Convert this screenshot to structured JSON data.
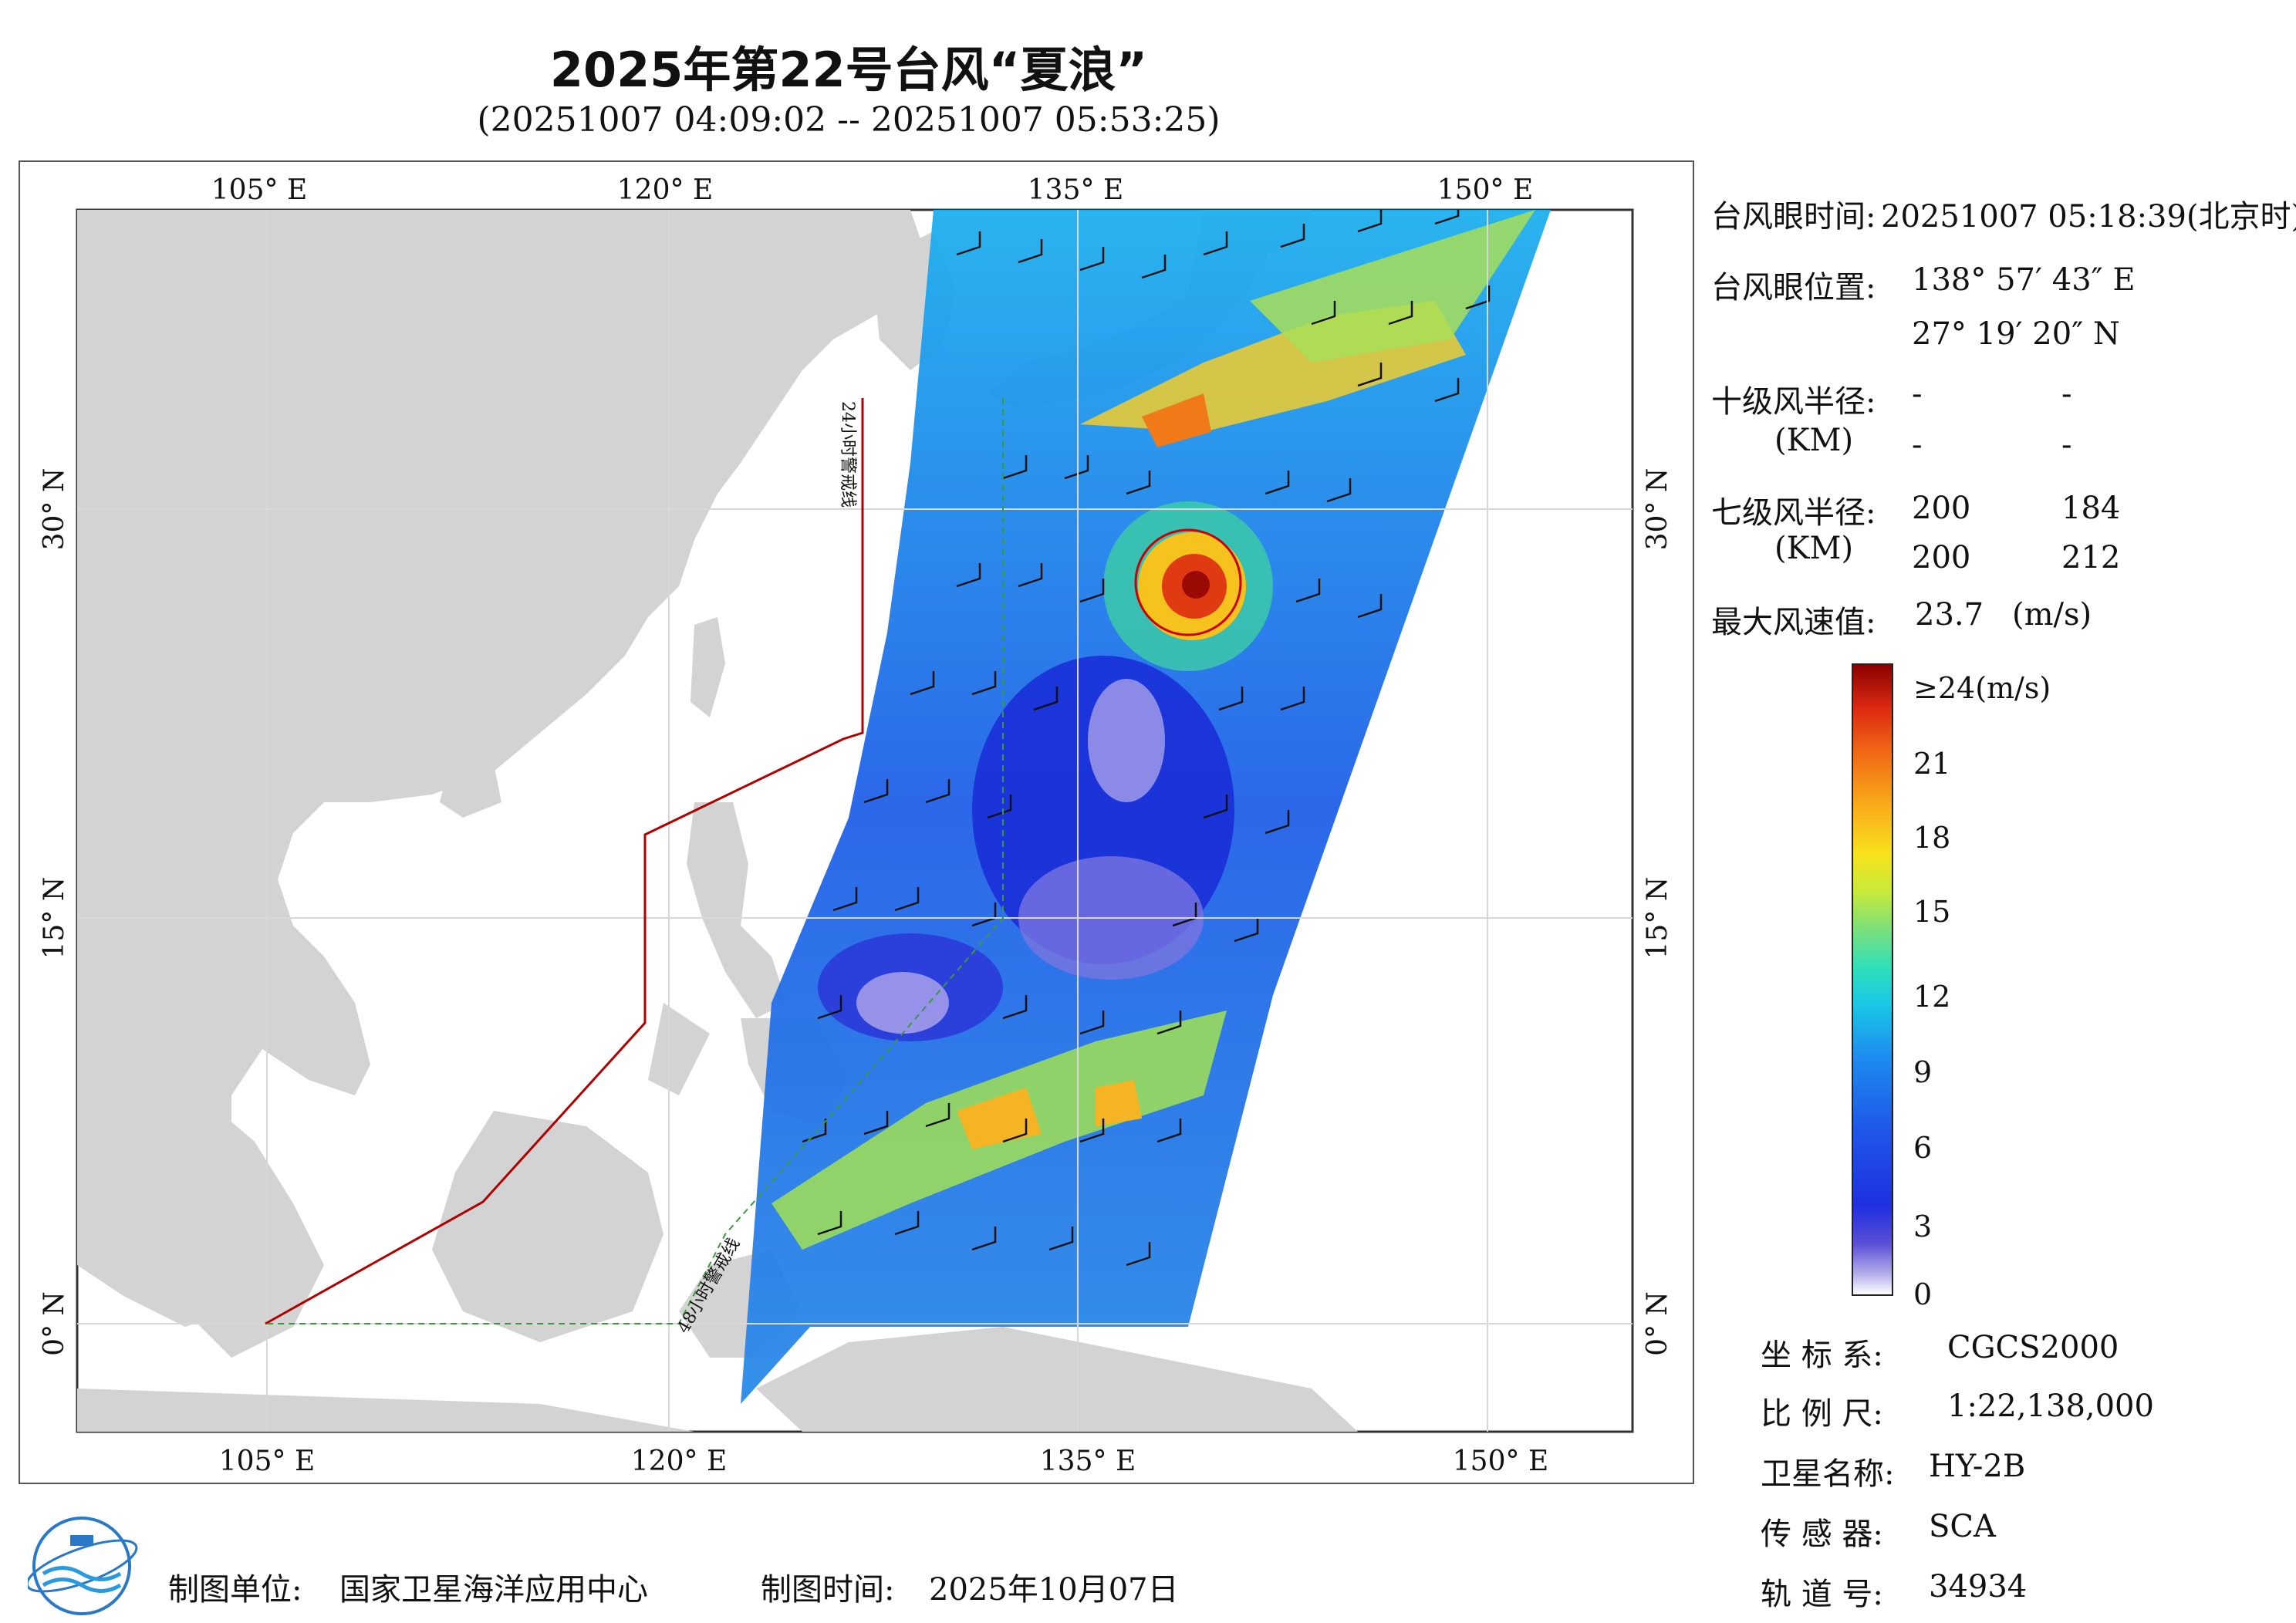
{
  "header": {
    "title": "2025年第22号台风“夏浪”",
    "subtitle": "(20251007 04:09:02 -- 20251007 05:53:25)"
  },
  "map": {
    "lon_labels": [
      "105° E",
      "120° E",
      "135° E",
      "150° E"
    ],
    "lat_labels": [
      "30° N",
      "15° N",
      "0° N"
    ],
    "warning_line_24h": "24小时警戒线",
    "warning_line_48h": "48小时警戒线",
    "colors": {
      "land": "#d3d3d3",
      "sea": "#ffffff",
      "typhoon_circle": "#cc0000",
      "warning_line": "#b00000"
    }
  },
  "info": {
    "eye_time_label": "台风眼时间:",
    "eye_time_value": "20251007 05:18:39(北京时)",
    "eye_pos_label": "台风眼位置:",
    "eye_lon": "138° 57′ 43″ E",
    "eye_lat": "27° 19′ 20″ N",
    "r10_label": "十级风半径:",
    "r10_unit": "(KM)",
    "r10_values": [
      "-",
      "-",
      "-",
      "-"
    ],
    "r7_label": "七级风半径:",
    "r7_unit": "(KM)",
    "r7_values": [
      "200",
      "184",
      "200",
      "212"
    ],
    "max_wind_label": "最大风速值:",
    "max_wind_value": "23.7",
    "max_wind_unit": "(m/s)"
  },
  "colorbar": {
    "ticks": [
      "≥24(m/s)",
      "21",
      "18",
      "15",
      "12",
      "9",
      "6",
      "3",
      "0"
    ]
  },
  "meta": {
    "crs_label": "坐 标 系:",
    "crs_value": "CGCS2000",
    "scale_label": "比 例 尺:",
    "scale_value": "1:22,138,000",
    "satellite_label": "卫星名称:",
    "satellite_value": "HY-2B",
    "sensor_label": "传 感 器:",
    "sensor_value": "SCA",
    "orbit_label": "轨 道 号:",
    "orbit_value": "34934"
  },
  "footer": {
    "producer_label": "制图单位:",
    "producer_value": "国家卫星海洋应用中心",
    "date_label": "制图时间:",
    "date_value": "2025年10月07日"
  }
}
